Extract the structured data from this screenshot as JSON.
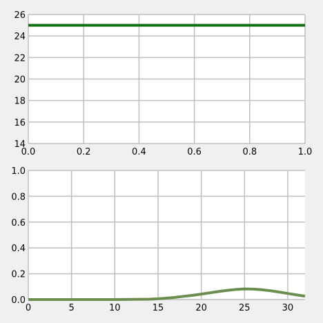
{
  "colors": {
    "background": "#f0f0f0",
    "plot_area": "#ffffff",
    "grid": "#bfbfbf",
    "top_line": "#137013",
    "bottom_line": "#6b8e4e"
  },
  "chart_data": [
    {
      "type": "line",
      "title": "",
      "xlabel": "",
      "ylabel": "",
      "xlim": [
        0.0,
        1.0
      ],
      "ylim": [
        14,
        26
      ],
      "x_ticks": [
        0.0,
        0.2,
        0.4,
        0.6,
        0.8,
        1.0
      ],
      "x_tick_labels": [
        "0.0",
        "0.2",
        "0.4",
        "0.6",
        "0.8",
        "1.0"
      ],
      "y_ticks": [
        14,
        16,
        18,
        20,
        22,
        24,
        26
      ],
      "y_tick_labels": [
        "14",
        "16",
        "18",
        "20",
        "22",
        "24",
        "26"
      ],
      "grid": true,
      "series": [
        {
          "x": [
            0.0,
            1.0
          ],
          "y": [
            25,
            25
          ],
          "color": "#137013"
        }
      ]
    },
    {
      "type": "line",
      "title": "",
      "xlabel": "",
      "ylabel": "",
      "xlim": [
        0,
        32
      ],
      "ylim": [
        0.0,
        1.0
      ],
      "x_ticks": [
        0,
        5,
        10,
        15,
        20,
        25,
        30
      ],
      "x_tick_labels": [
        "0",
        "5",
        "10",
        "15",
        "20",
        "25",
        "30"
      ],
      "y_ticks": [
        0.0,
        0.2,
        0.4,
        0.6,
        0.8,
        1.0
      ],
      "y_tick_labels": [
        "0.0",
        "0.2",
        "0.4",
        "0.6",
        "0.8",
        "1.0"
      ],
      "grid": true,
      "series": [
        {
          "x": [
            0,
            2,
            4,
            6,
            8,
            10,
            12,
            14,
            15,
            16,
            17,
            18,
            19,
            20,
            21,
            22,
            23,
            24,
            25,
            26,
            27,
            28,
            29,
            30,
            31,
            32
          ],
          "y": [
            0.0,
            0.0,
            0.0,
            0.0,
            0.0,
            0.0,
            0.001,
            0.003,
            0.006,
            0.011,
            0.017,
            0.025,
            0.033,
            0.042,
            0.052,
            0.062,
            0.071,
            0.078,
            0.082,
            0.081,
            0.076,
            0.068,
            0.058,
            0.047,
            0.036,
            0.026
          ],
          "color": "#6b8e4e"
        }
      ]
    }
  ]
}
